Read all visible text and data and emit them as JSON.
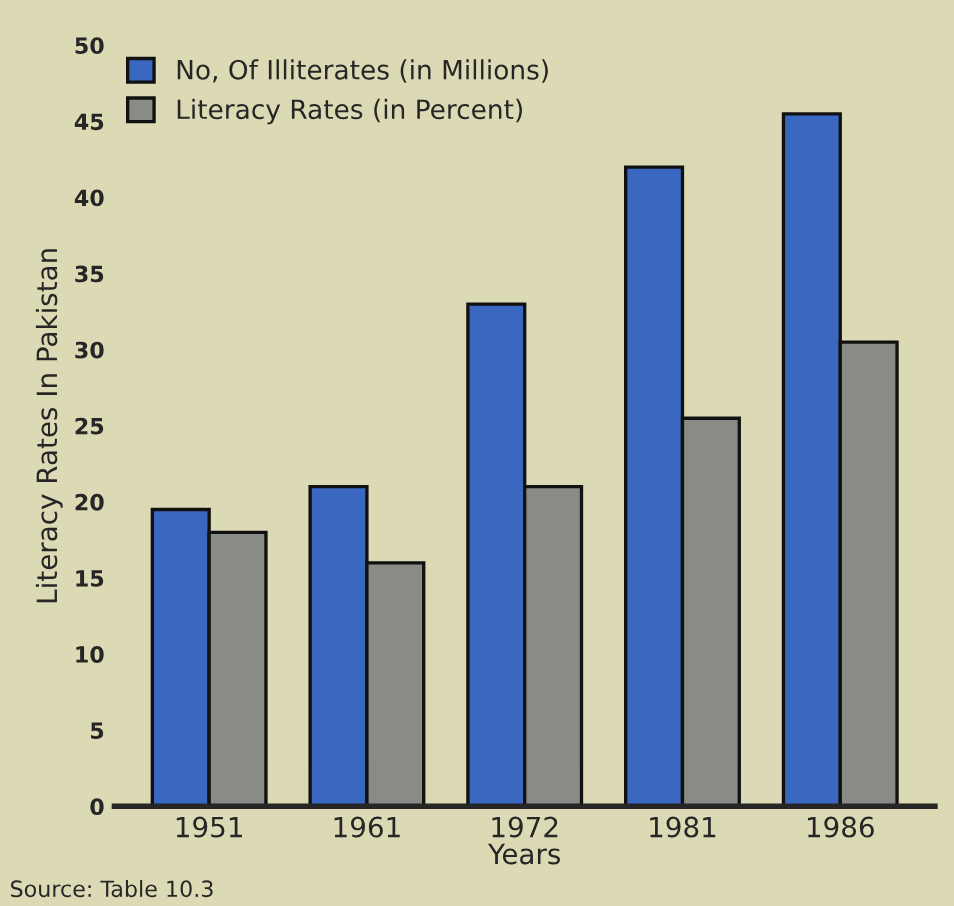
{
  "chart_data": {
    "type": "bar",
    "ylabel": "Literacy Rates In Pakistan",
    "xlabel": "Years",
    "categories": [
      "1951",
      "1961",
      "1972",
      "1981",
      "1986"
    ],
    "series": [
      {
        "name": "No, Of Illiterates (in Millions)",
        "color": "#3a68c0",
        "values": [
          19.5,
          21,
          33,
          42,
          45.5
        ]
      },
      {
        "name": "Literacy Rates (in Percent)",
        "color": "#8a8a86",
        "values": [
          18,
          16,
          21,
          25.5,
          30.5
        ]
      }
    ],
    "ylim": [
      0,
      50
    ],
    "yticks": [
      0,
      5,
      10,
      15,
      20,
      25,
      30,
      35,
      40,
      45,
      50
    ],
    "legend": "top left",
    "grid": false,
    "annotations": [
      "Source: Table 10.3"
    ]
  }
}
